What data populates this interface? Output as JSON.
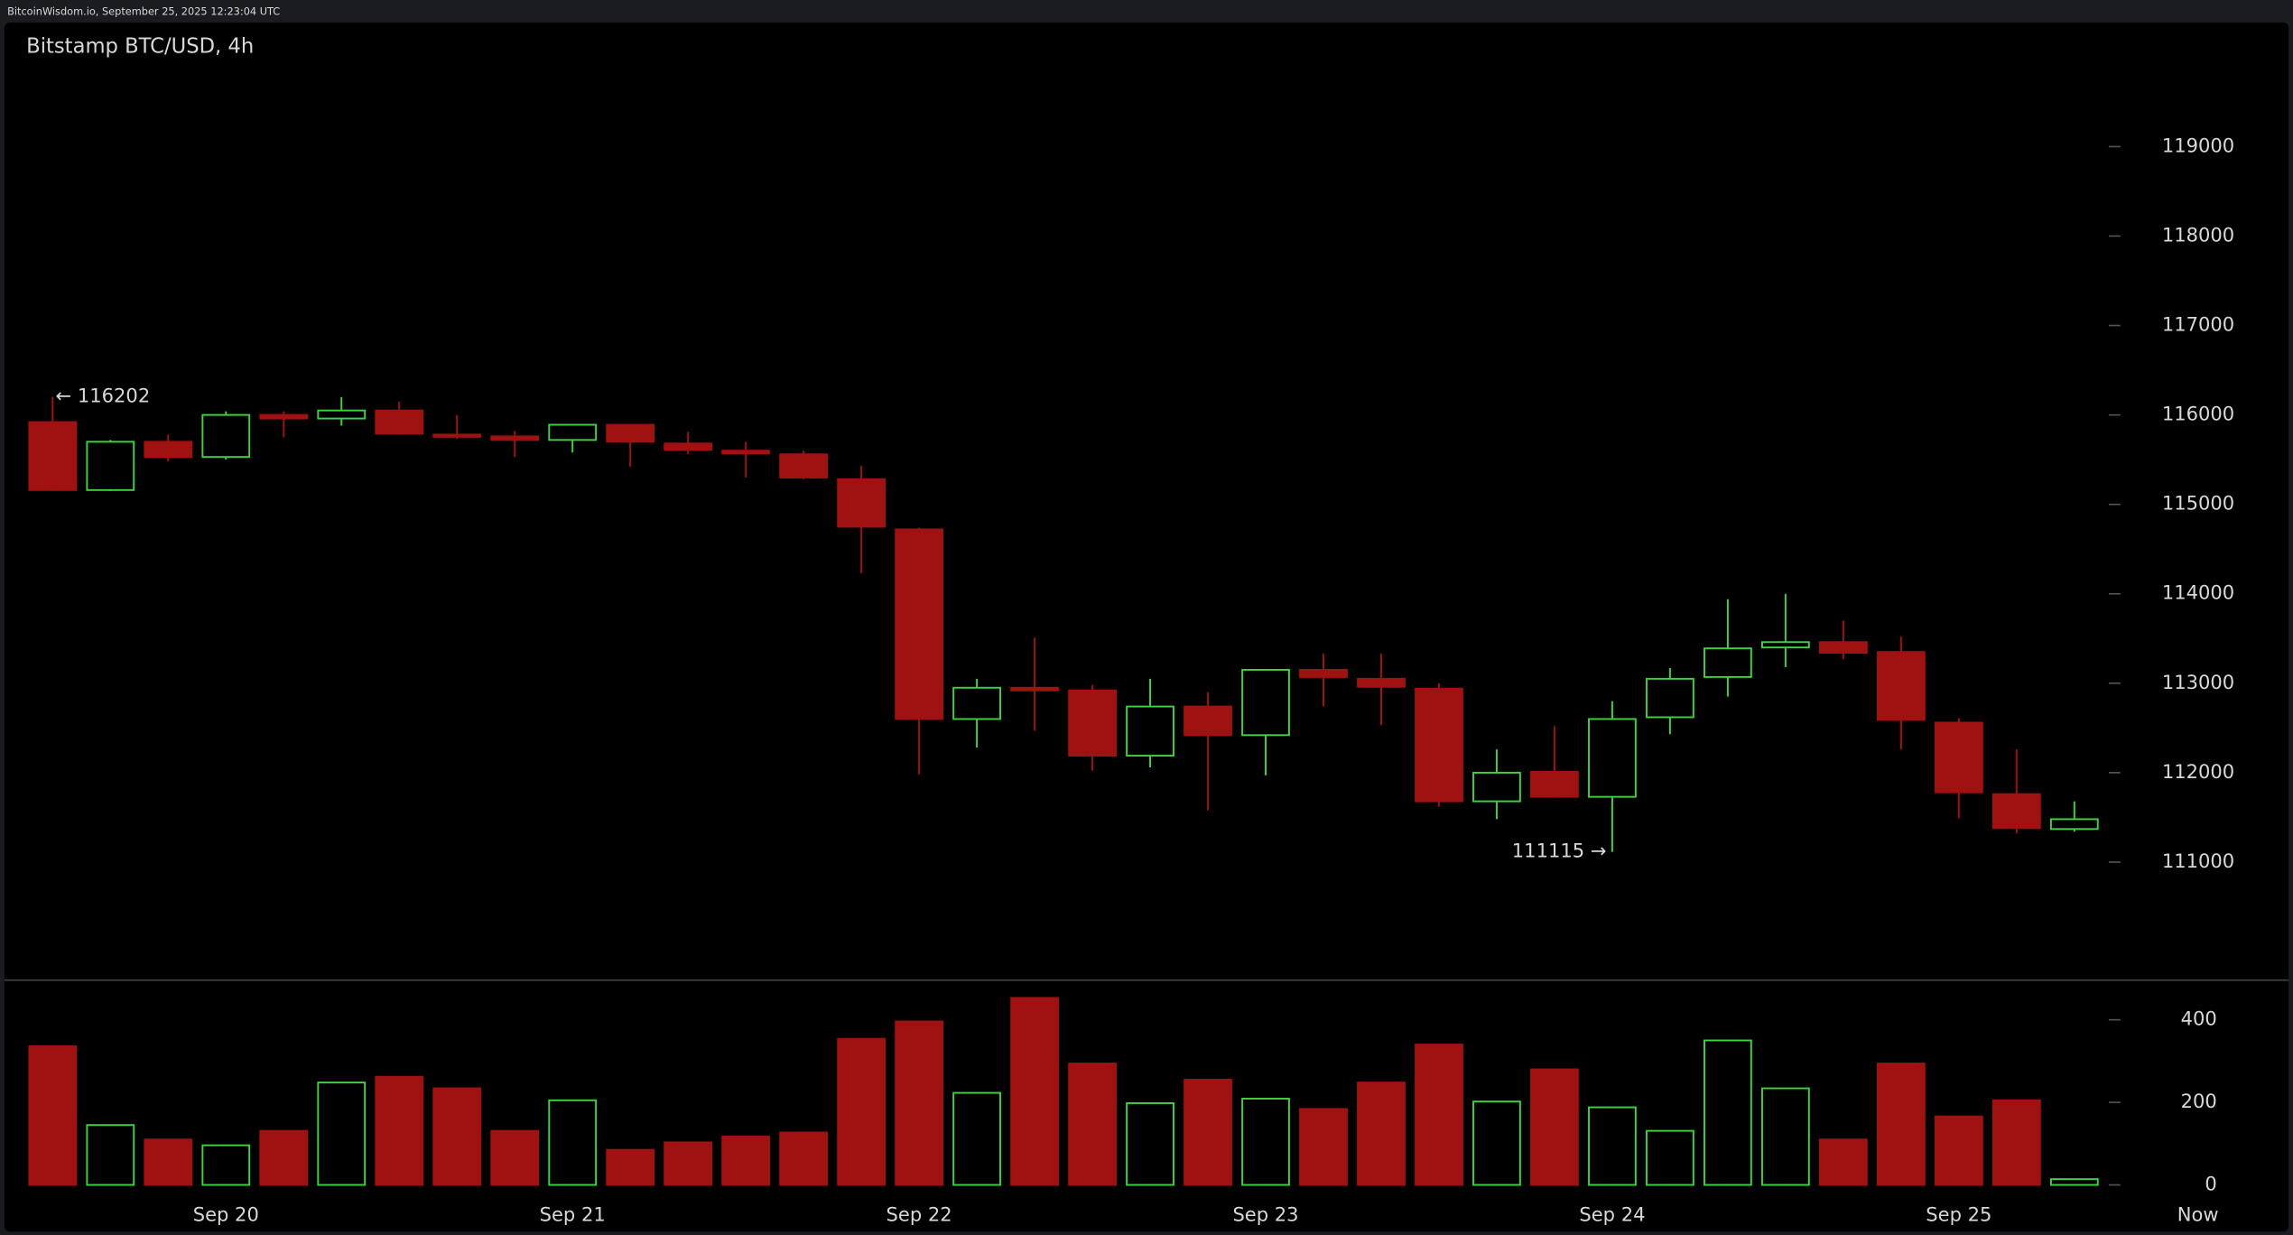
{
  "header": "BitcoinWisdom.io, September 25, 2025 12:23:04 UTC",
  "chart_data": {
    "type": "candlestick",
    "title": "Bitstamp BTC/USD, 4h",
    "categories": [
      null,
      null,
      null,
      "Sep 20",
      null,
      null,
      null,
      null,
      null,
      "Sep 21",
      null,
      null,
      null,
      null,
      null,
      "Sep 22",
      null,
      null,
      null,
      null,
      null,
      "Sep 23",
      null,
      null,
      null,
      null,
      null,
      "Sep 24",
      null,
      null,
      null,
      null,
      null,
      "Sep 25",
      null,
      null
    ],
    "now_label": "Now",
    "open": [
      115920,
      115160,
      115700,
      115530,
      116000,
      115960,
      116050,
      115780,
      115760,
      115720,
      115890,
      115680,
      115600,
      115560,
      115280,
      114720,
      112600,
      112950,
      112920,
      112190,
      112740,
      112420,
      113150,
      113050,
      112940,
      111680,
      112010,
      111730,
      112620,
      113070,
      113400,
      113460,
      113350,
      112560,
      111760,
      111370
    ],
    "high": [
      116202,
      115720,
      115780,
      116040,
      116040,
      116200,
      116150,
      116000,
      115820,
      115890,
      115890,
      115810,
      115700,
      115600,
      115430,
      114740,
      113050,
      113510,
      112980,
      113050,
      112900,
      113160,
      113330,
      113330,
      113000,
      112260,
      112520,
      112800,
      113170,
      113940,
      114000,
      113700,
      113520,
      112610,
      112260,
      111680
    ],
    "low": [
      115150,
      115150,
      115480,
      115500,
      115750,
      115880,
      115780,
      115730,
      115530,
      115580,
      115420,
      115560,
      115300,
      115280,
      114230,
      111980,
      112280,
      112470,
      112020,
      112060,
      111580,
      111970,
      112740,
      112530,
      111620,
      111480,
      111720,
      111115,
      112430,
      112850,
      113180,
      113270,
      112260,
      111490,
      111320,
      111340
    ],
    "close": [
      115160,
      115700,
      115530,
      116000,
      115960,
      116050,
      115790,
      115760,
      115720,
      115890,
      115700,
      115610,
      115570,
      115300,
      114750,
      112600,
      112950,
      112920,
      112190,
      112740,
      112420,
      113150,
      113070,
      112960,
      111680,
      112000,
      111730,
      112600,
      113050,
      113390,
      113460,
      113340,
      112590,
      111780,
      111380,
      111480
    ],
    "volume": [
      336,
      145,
      110,
      96,
      131,
      248,
      262,
      234,
      131,
      205,
      85,
      103,
      117,
      127,
      354,
      396,
      223,
      453,
      294,
      198,
      255,
      209,
      184,
      248,
      340,
      202,
      280,
      188,
      131,
      350,
      234,
      110,
      294,
      166,
      205,
      14
    ],
    "ylim": [
      109680,
      120390
    ],
    "yticks": [
      111000,
      112000,
      113000,
      114000,
      115000,
      116000,
      117000,
      118000,
      119000
    ],
    "volume_ylim": [
      0,
      496
    ],
    "volume_yticks": [
      0,
      200,
      400
    ],
    "up_color": "#3fd13f",
    "down_color": "#a01212",
    "annotations": [
      {
        "text": "← 116202"
      },
      {
        "text": "111115 →"
      }
    ]
  }
}
